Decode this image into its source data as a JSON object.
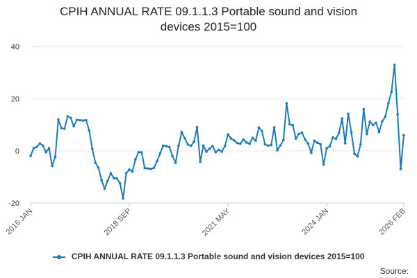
{
  "chart_data": {
    "type": "line",
    "title_line1": "CPIH ANNUAL RATE 09.1.1.3 Portable sound and vision",
    "title_line2": "devices 2015=100",
    "ylim": [
      -20,
      40
    ],
    "yticks": [
      40,
      20,
      0,
      -20
    ],
    "xticks": [
      {
        "label": "2016 JAN",
        "index": 0
      },
      {
        "label": "2018 SEP",
        "index": 32
      },
      {
        "label": "2021 MAY",
        "index": 64
      },
      {
        "label": "2024 JAN",
        "index": 96
      },
      {
        "label": "2026 FEB",
        "index": 121
      }
    ],
    "series": [
      {
        "name": "CPIH ANNUAL RATE 09.1.1.3 Portable sound and vision devices 2015=100",
        "color": "#1a7ab8",
        "values": [
          -2,
          1,
          1.5,
          2.8,
          2,
          -0.5,
          1,
          -5.8,
          -2.3,
          12,
          8.7,
          8.5,
          13.2,
          12.7,
          9.4,
          11.9,
          11.8,
          11.6,
          11.8,
          7.8,
          0.8,
          -4.5,
          -6.5,
          -11.2,
          -14.5,
          -11.5,
          -8.6,
          -10.5,
          -10.6,
          -12.5,
          -18.3,
          -8.6,
          -7.2,
          -8,
          -3.3,
          -0.5,
          -0.6,
          -6.6,
          -6.8,
          -7,
          -6.5,
          -4,
          -1,
          2,
          1.8,
          1.5,
          -2,
          -4.6,
          2,
          7.2,
          4.8,
          2.4,
          1.9,
          3.5,
          9.1,
          -4.2,
          2,
          -0.3,
          0.8,
          1.8,
          -0.5,
          0.4,
          -0.3,
          1.8,
          6.3,
          4.7,
          4,
          3,
          2.7,
          4.3,
          3.2,
          2.7,
          5,
          3.9,
          8.9,
          7.6,
          2.5,
          2,
          2.2,
          9,
          0.2,
          2.1,
          4.2,
          18.2,
          10.2,
          9.8,
          4.7,
          6.5,
          7,
          4.3,
          2.8,
          -0.8,
          3.9,
          3.1,
          2.5,
          -5.3,
          1,
          1.7,
          5.1,
          4.6,
          6.8,
          12.4,
          2.9,
          14.2,
          7,
          -1.1,
          -2.1,
          2.5,
          16,
          6.4,
          11.2,
          9.9,
          10.8,
          7.2,
          11.3,
          13.1,
          18.2,
          22.6,
          33,
          14,
          -7,
          6
        ]
      }
    ],
    "legend_label": "CPIH ANNUAL RATE 09.1.1.3 Portable sound and vision devices 2015=100",
    "source_label": "Source:"
  }
}
